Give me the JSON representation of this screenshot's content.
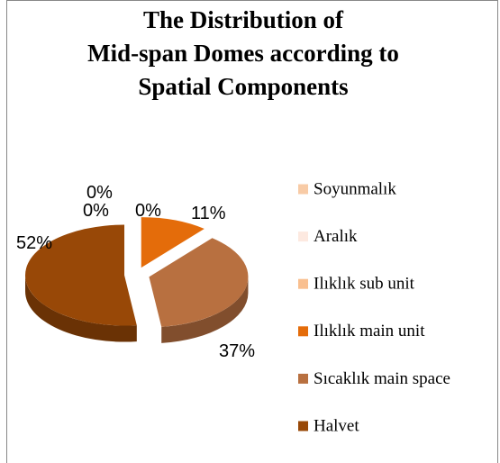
{
  "chart_data": {
    "type": "pie",
    "title": "The Distribution of\nMid-span Domes according to\nSpatial Components",
    "categories": [
      "Soyunmalık",
      "Aralık",
      "Ilıklık sub unit",
      "Ilıklık main unit",
      "Sıcaklık main space",
      "Halvet"
    ],
    "values": [
      0,
      0,
      0,
      11,
      37,
      52
    ],
    "value_labels": [
      "0%",
      "0%",
      "0%",
      "11%",
      "37%",
      "52%"
    ],
    "colors": [
      "#f8cba6",
      "#fde9e0",
      "#f9bf8f",
      "#e46c0a",
      "#b87040",
      "#984807"
    ],
    "legend": "right"
  }
}
